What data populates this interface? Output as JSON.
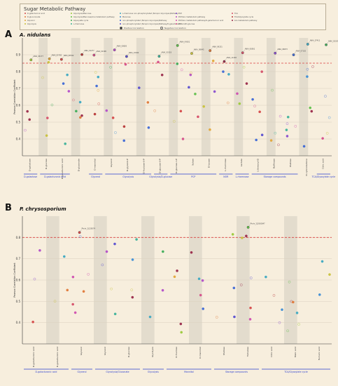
{
  "legend": {
    "title": "Sugar Metabolic Pathway",
    "positive_label": "Positive Correlation",
    "negative_label": "Negative Correlation",
    "items": [
      {
        "label": "D-galacturonic acid",
        "color": "#d64a4a"
      },
      {
        "label": "D-glucuronate",
        "color": "#e07a3a"
      },
      {
        "label": "Glycerol",
        "color": "#e2a83a"
      },
      {
        "label": "Glycolysis",
        "color": "#c9c23c"
      },
      {
        "label": "Glycolysis/Mannose",
        "color": "#9ccb3c"
      },
      {
        "label": "Glycolysis/Mannose/Ara metabolism pathway",
        "color": "#5fbf4a"
      },
      {
        "label": "Glyoxylate cycle",
        "color": "#3fae5a"
      },
      {
        "label": "L-rhamnose",
        "color": "#3fb39a"
      },
      {
        "label": "L-rhamnose non-phosphorylated (Nicopro Glycolysis)Pathway",
        "color": "#3fa9c2"
      },
      {
        "label": "Mannose",
        "color": "#3f8fd6"
      },
      {
        "label": "non-phosphorylated (Nicopro Glycolysis)Pathway",
        "color": "#3f6ad6"
      },
      {
        "label": "non-phosphorylated (Nicopro Glycolysis)Pathway/D-galacturonic acid/D-glucose",
        "color": "#5a4fd0"
      },
      {
        "label": "PCP",
        "color": "#8a4fd0"
      },
      {
        "label": "PCP/Ara metabolism pathway",
        "color": "#b44fc9"
      },
      {
        "label": "PCP/Ara metabolism pathway/D-galacturonic acid",
        "color": "#d04fb0"
      },
      {
        "label": "PPP",
        "color": "#d64f8a"
      },
      {
        "label": "TCA",
        "color": "#d6506a"
      },
      {
        "label": "TCA/Glyoxylate cycle",
        "color": "#b83a3a"
      },
      {
        "label": "Ara metabolism pathway",
        "color": "#9a2a4a"
      }
    ]
  },
  "panels": [
    {
      "letter": "A",
      "organism": "A. nidulans",
      "chart_data": {
        "type": "scatter",
        "ylabel": "Pearson Correlation Coefficient",
        "ylim": [
          0.3,
          1.0
        ],
        "yticks": [
          0.4,
          0.5,
          0.6,
          0.7,
          0.8,
          0.9
        ],
        "threshold": 0.85,
        "categories": [
          "D-galactose",
          "D-glucose",
          "D-galacturonic acid",
          "D-gluconate",
          "D-mannitol",
          "Glycerol",
          "D-glycerol-P",
          "D-fructose-6-P",
          "D-glucose-6-P",
          "D-glucose-1-P",
          "Xylose",
          "D-lyxose",
          "L-rhamnose",
          "Lactate",
          "L-threonyl-D",
          "Raffinose",
          "Maltose",
          "D-xylonolactone",
          "Citric acid"
        ],
        "groups": [
          {
            "label": "D-galactose",
            "from": 0,
            "to": 0
          },
          {
            "label": "D-galacturonic acid",
            "from": 1,
            "to": 2
          },
          {
            "label": "Glycerol",
            "from": 4,
            "to": 4
          },
          {
            "label": "Glycolysis",
            "from": 5,
            "to": 7
          },
          {
            "label": "Glycolysis/D-glucose",
            "from": 8,
            "to": 8
          },
          {
            "label": "PCP",
            "from": 9,
            "to": 11
          },
          {
            "label": "NOR",
            "from": 12,
            "to": 12
          },
          {
            "label": "L-rhamnose",
            "from": 13,
            "to": 13
          },
          {
            "label": "Storage compounds",
            "from": 14,
            "to": 16
          },
          {
            "label": "TCA/Glyoxylate cycle",
            "from": 18,
            "to": 18
          }
        ],
        "labelled_points": [
          "ANIA_00342",
          "ANIA_04301",
          "ANIA_07102",
          "ANIA_02190",
          "ANIA_09231",
          "ANIA_02335",
          "ANIA_10044",
          "ANIA_06561",
          "ANIA_05782",
          "ANIA_03318",
          "ANIA_06673",
          "ANIA_01277",
          "ANIA_08945",
          "ANIA_07411",
          "ANIA_00820",
          "ANIA_11402",
          "ANIA_04177"
        ]
      }
    },
    {
      "letter": "B",
      "organism": "P. chrysosporium",
      "chart_data": {
        "type": "scatter",
        "ylabel": "Pearson Correlation Coefficient",
        "ylim": [
          0.3,
          0.9
        ],
        "yticks": [
          0.4,
          0.5,
          0.6,
          0.7,
          0.8
        ],
        "threshold": 0.8,
        "categories": [
          "D-galacturonic acid",
          "D-galacturonic acid",
          "Glycerol",
          "Glycerol",
          "D-glucose",
          "Glycolysis",
          "D-fructose",
          "D-mannitol",
          "Maltose",
          "Trehalose",
          "Citric acid",
          "Malic acid",
          "Fumaric acid"
        ],
        "groups": [
          {
            "label": "D-galacturonic acid",
            "from": 0,
            "to": 1
          },
          {
            "label": "Glycerol",
            "from": 2,
            "to": 2
          },
          {
            "label": "Glycolysis/Gluconate",
            "from": 3,
            "to": 4
          },
          {
            "label": "Glycolysis",
            "from": 5,
            "to": 5
          },
          {
            "label": "Mannitol",
            "from": 6,
            "to": 7
          },
          {
            "label": "Storage compounds",
            "from": 8,
            "to": 9
          },
          {
            "label": "TCA/Glyoxylate cycle",
            "from": 10,
            "to": 12
          }
        ],
        "labelled_points": [
          "Phchr_2|128574",
          "Phchr_2|2930847"
        ]
      }
    }
  ]
}
